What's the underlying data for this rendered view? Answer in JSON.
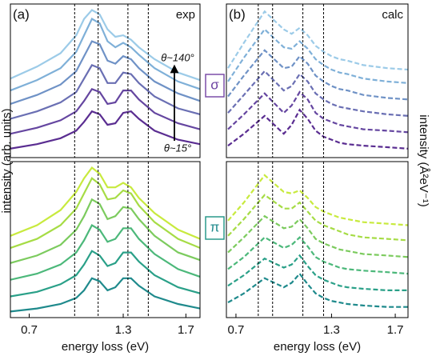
{
  "chart_data": [
    {
      "type": "line",
      "panel_label": "(a)",
      "annotations": [
        "exp",
        "θ~140°",
        "θ~15°"
      ],
      "ylabel": "intensity (arb. units)",
      "x": [
        0.58,
        0.75,
        0.9,
        1.0,
        1.05,
        1.1,
        1.15,
        1.2,
        1.25,
        1.3,
        1.35,
        1.4,
        1.5,
        1.65,
        1.79
      ],
      "xlim": [
        0.58,
        1.79
      ],
      "ylim": [
        0,
        10.3
      ],
      "vlines": [
        0.99,
        1.14,
        1.33,
        1.46
      ],
      "dashed": false,
      "series": [
        {
          "color": "#5a2d91",
          "values": [
            0.6,
            0.9,
            1.3,
            1.8,
            2.4,
            3.1,
            2.9,
            2.2,
            2.3,
            3.0,
            3.1,
            2.6,
            1.8,
            1.2,
            0.9
          ]
        },
        {
          "color": "#6546a0",
          "values": [
            1.6,
            2.0,
            2.5,
            3.1,
            3.8,
            4.6,
            4.4,
            3.6,
            3.7,
            4.5,
            4.5,
            3.9,
            3.0,
            2.3,
            1.9
          ]
        },
        {
          "color": "#6a6fb3",
          "values": [
            2.6,
            3.1,
            3.7,
            4.4,
            5.3,
            6.2,
            6.0,
            5.0,
            5.0,
            5.7,
            5.6,
            5.0,
            4.1,
            3.3,
            2.9
          ]
        },
        {
          "color": "#6f92c6",
          "values": [
            3.6,
            4.2,
            4.9,
            5.8,
            6.8,
            7.8,
            7.6,
            6.5,
            6.3,
            6.8,
            6.6,
            6.0,
            5.1,
            4.3,
            3.8
          ]
        },
        {
          "color": "#7fb0d8",
          "values": [
            4.5,
            5.2,
            6.0,
            7.1,
            8.2,
            9.3,
            9.0,
            7.8,
            7.4,
            7.7,
            7.4,
            6.9,
            6.0,
            5.1,
            4.6
          ]
        },
        {
          "color": "#9ccbe8",
          "values": [
            5.3,
            6.1,
            7.0,
            8.2,
            9.3,
            9.9,
            9.6,
            8.6,
            8.1,
            8.2,
            7.9,
            7.4,
            6.6,
            5.7,
            5.2
          ]
        }
      ]
    },
    {
      "type": "line",
      "panel_label": "(b)",
      "annotations": [
        "calc"
      ],
      "ylabel": "intensity (Å²eV⁻¹)",
      "x": [
        0.65,
        0.75,
        0.88,
        1.0,
        1.05,
        1.1,
        1.15,
        1.2,
        1.25,
        1.3,
        1.35,
        1.4,
        1.5,
        1.65,
        1.78
      ],
      "xlim": [
        0.64,
        1.78
      ],
      "ylim": [
        0,
        10.3
      ],
      "vlines": [
        0.84,
        0.93,
        1.12,
        1.25
      ],
      "dashed": true,
      "series": [
        {
          "color": "#5a2d91",
          "values": [
            0.8,
            1.6,
            2.8,
            1.6,
            2.2,
            3.2,
            2.6,
            1.8,
            1.4,
            1.2,
            1.0,
            0.9,
            0.8,
            0.7,
            0.6
          ]
        },
        {
          "color": "#6546a0",
          "values": [
            1.9,
            2.9,
            4.3,
            3.0,
            3.5,
            4.4,
            3.9,
            3.0,
            2.6,
            2.4,
            2.2,
            2.1,
            1.9,
            1.8,
            1.7
          ]
        },
        {
          "color": "#6a6fb3",
          "values": [
            3.0,
            4.2,
            5.8,
            4.5,
            4.8,
            5.6,
            5.1,
            4.3,
            3.9,
            3.6,
            3.4,
            3.3,
            3.1,
            2.9,
            2.8
          ]
        },
        {
          "color": "#6f92c6",
          "values": [
            4.1,
            5.5,
            7.2,
            6.0,
            6.1,
            6.8,
            6.3,
            5.5,
            5.1,
            4.8,
            4.6,
            4.5,
            4.2,
            4.0,
            3.9
          ]
        },
        {
          "color": "#7fb0d8",
          "values": [
            5.1,
            6.7,
            8.6,
            7.4,
            7.3,
            7.8,
            7.3,
            6.6,
            6.2,
            5.9,
            5.7,
            5.6,
            5.3,
            5.1,
            5.0
          ]
        },
        {
          "color": "#9ccbe8",
          "values": [
            6.0,
            7.7,
            9.8,
            8.6,
            8.3,
            8.7,
            8.2,
            7.5,
            7.1,
            6.8,
            6.6,
            6.5,
            6.2,
            6.0,
            5.9
          ]
        }
      ]
    },
    {
      "type": "line",
      "xlabel": "energy loss (eV)",
      "x": [
        0.58,
        0.75,
        0.9,
        1.0,
        1.05,
        1.1,
        1.15,
        1.2,
        1.25,
        1.3,
        1.35,
        1.4,
        1.5,
        1.65,
        1.79
      ],
      "xlim": [
        0.58,
        1.79
      ],
      "xticks": [
        0.7,
        1.3,
        1.7
      ],
      "ylim": [
        0,
        10.3
      ],
      "vlines": [
        0.99,
        1.14,
        1.33,
        1.46
      ],
      "dashed": false,
      "series": [
        {
          "color": "#1f8a8c",
          "values": [
            0.4,
            0.6,
            0.9,
            1.3,
            1.8,
            2.6,
            2.4,
            1.8,
            2.0,
            2.6,
            2.6,
            2.1,
            1.4,
            0.9,
            0.6
          ]
        },
        {
          "color": "#2aa088",
          "values": [
            1.4,
            1.7,
            2.2,
            2.8,
            3.5,
            4.4,
            4.1,
            3.4,
            3.6,
            4.3,
            4.3,
            3.7,
            2.8,
            2.0,
            1.6
          ]
        },
        {
          "color": "#4cb87a",
          "values": [
            2.5,
            2.9,
            3.5,
            4.3,
            5.1,
            6.1,
            5.8,
            5.0,
            5.2,
            5.9,
            5.9,
            5.2,
            4.2,
            3.2,
            2.7
          ]
        },
        {
          "color": "#7ccb5e",
          "values": [
            3.6,
            4.1,
            4.8,
            5.8,
            6.7,
            7.8,
            7.5,
            6.5,
            6.7,
            7.3,
            7.2,
            6.5,
            5.4,
            4.3,
            3.8
          ]
        },
        {
          "color": "#a6dc45",
          "values": [
            4.6,
            5.2,
            6.1,
            7.2,
            8.2,
            9.2,
            8.8,
            7.8,
            7.9,
            8.4,
            8.2,
            7.4,
            6.3,
            5.2,
            4.6
          ]
        },
        {
          "color": "#c8ea3e",
          "values": [
            5.4,
            6.1,
            7.1,
            8.3,
            9.2,
            9.9,
            9.5,
            8.6,
            8.6,
            8.9,
            8.6,
            7.9,
            6.9,
            5.8,
            5.2
          ]
        }
      ]
    },
    {
      "type": "line",
      "xlabel": "energy loss (eV)",
      "x": [
        0.65,
        0.75,
        0.88,
        1.0,
        1.05,
        1.1,
        1.15,
        1.2,
        1.25,
        1.3,
        1.35,
        1.4,
        1.5,
        1.65,
        1.78
      ],
      "xlim": [
        0.64,
        1.78
      ],
      "xticks": [
        0.7,
        1.3,
        1.7
      ],
      "ylim": [
        0,
        10.3
      ],
      "vlines": [
        0.84,
        0.93,
        1.12,
        1.25
      ],
      "dashed": true,
      "series": [
        {
          "color": "#1f8a8c",
          "values": [
            1.0,
            1.6,
            2.6,
            2.0,
            2.3,
            2.9,
            2.2,
            1.6,
            1.3,
            1.1,
            1.0,
            0.9,
            0.8,
            0.7,
            0.7
          ]
        },
        {
          "color": "#2aa088",
          "values": [
            2.1,
            2.8,
            3.9,
            3.3,
            3.5,
            4.1,
            3.4,
            2.8,
            2.5,
            2.3,
            2.1,
            2.0,
            1.9,
            1.8,
            1.8
          ]
        },
        {
          "color": "#4cb87a",
          "values": [
            3.2,
            4.0,
            5.3,
            4.6,
            4.8,
            5.3,
            4.7,
            4.0,
            3.7,
            3.5,
            3.3,
            3.2,
            3.1,
            3.0,
            2.9
          ]
        },
        {
          "color": "#7ccb5e",
          "values": [
            4.3,
            5.3,
            6.7,
            5.9,
            6.0,
            6.5,
            5.9,
            5.2,
            4.9,
            4.7,
            4.5,
            4.4,
            4.2,
            4.1,
            4.0
          ]
        },
        {
          "color": "#a6dc45",
          "values": [
            5.4,
            6.5,
            8.1,
            7.2,
            7.2,
            7.6,
            7.0,
            6.4,
            6.1,
            5.9,
            5.7,
            5.5,
            5.3,
            5.2,
            5.1
          ]
        },
        {
          "color": "#c8ea3e",
          "values": [
            6.4,
            7.6,
            9.4,
            8.3,
            8.2,
            8.4,
            7.9,
            7.3,
            7.0,
            6.8,
            6.6,
            6.5,
            6.3,
            6.2,
            6.1
          ]
        }
      ]
    }
  ],
  "row_labels": [
    "σ",
    "π"
  ]
}
